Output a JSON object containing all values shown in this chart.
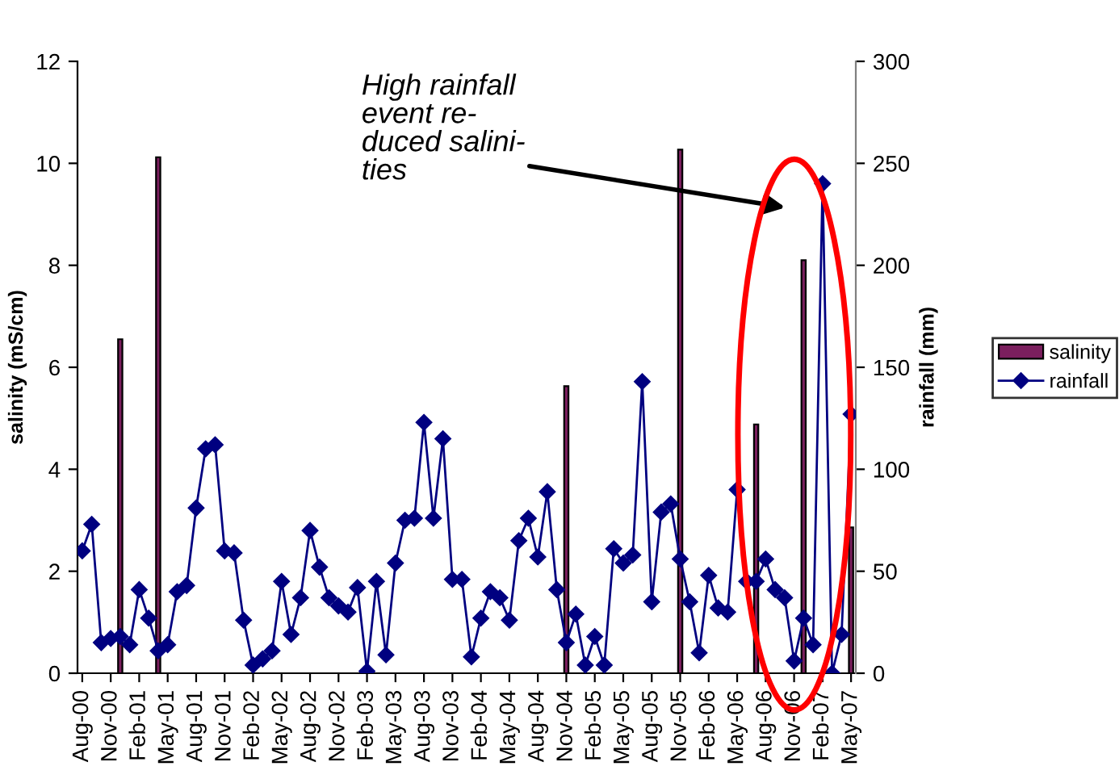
{
  "chart_data": {
    "type": "bar",
    "categories": [
      "Aug-00",
      null,
      null,
      "Nov-00",
      null,
      null,
      "Feb-01",
      null,
      null,
      "May-01",
      null,
      null,
      "Aug-01",
      null,
      null,
      "Nov-01",
      null,
      null,
      "Feb-02",
      null,
      null,
      "May-02",
      null,
      null,
      "Aug-02",
      null,
      null,
      "Nov-02",
      null,
      null,
      "Feb-03",
      null,
      null,
      "May-03",
      null,
      null,
      "Aug-03",
      null,
      null,
      "Nov-03",
      null,
      null,
      "Feb-04",
      null,
      null,
      "May-04",
      null,
      null,
      "Aug-04",
      null,
      null,
      "Nov-04",
      null,
      null,
      "Feb-05",
      null,
      null,
      "May-05",
      null,
      null,
      "Aug-05",
      null,
      null,
      "Nov-05",
      null,
      null,
      "Feb-06",
      null,
      null,
      "May-06",
      null,
      null,
      "Aug-06",
      null,
      null,
      "Nov-06",
      null,
      null,
      "Feb-07",
      null,
      null,
      "May-07"
    ],
    "series": [
      {
        "name": "salinity",
        "color": "#7b1f5e",
        "values": [
          null,
          null,
          null,
          null,
          6.55,
          null,
          null,
          null,
          10.12,
          null,
          null,
          null,
          null,
          null,
          null,
          null,
          null,
          null,
          null,
          null,
          null,
          null,
          null,
          null,
          null,
          null,
          null,
          null,
          null,
          null,
          null,
          null,
          null,
          null,
          null,
          null,
          null,
          null,
          null,
          null,
          null,
          null,
          null,
          null,
          null,
          null,
          null,
          null,
          null,
          null,
          null,
          5.63,
          null,
          null,
          null,
          null,
          null,
          null,
          null,
          null,
          null,
          null,
          null,
          10.27,
          null,
          null,
          null,
          null,
          null,
          null,
          null,
          4.88,
          null,
          null,
          null,
          null,
          8.1,
          null,
          null,
          null,
          null,
          2.86
        ]
      },
      {
        "name": "rainfall",
        "type": "line",
        "axis": "y2",
        "color": "#000080",
        "values": [
          60,
          73,
          15,
          17,
          18,
          14,
          41,
          27,
          11,
          14,
          40,
          43,
          81,
          110,
          112,
          60,
          59,
          26,
          4,
          7,
          11,
          45,
          19,
          37,
          70,
          52,
          37,
          33,
          30,
          42,
          1,
          45,
          9,
          54,
          75,
          76,
          123,
          76,
          115,
          46,
          46,
          8,
          27,
          40,
          37,
          26,
          65,
          76,
          57,
          89,
          41,
          15,
          29,
          4,
          18,
          4,
          61,
          54,
          58,
          143,
          35,
          79,
          83,
          56,
          35,
          10,
          48,
          32,
          30,
          90,
          45,
          45,
          56,
          41,
          37,
          6,
          27,
          14,
          240,
          0,
          19,
          127
        ]
      }
    ],
    "ylabel": "salinity (mS/cm)",
    "y2label": "rainfall (mm)",
    "ylim": [
      0,
      12
    ],
    "yticks": [
      0,
      2,
      4,
      6,
      8,
      10,
      12
    ],
    "y2lim": [
      0,
      300
    ],
    "y2ticks": [
      0,
      50,
      100,
      150,
      200,
      250,
      300
    ],
    "marker": "diamond",
    "line_style": "solid",
    "legend": "right",
    "annotations": [
      "High rainfall\nevent re-\nduced salini-\nties"
    ]
  }
}
